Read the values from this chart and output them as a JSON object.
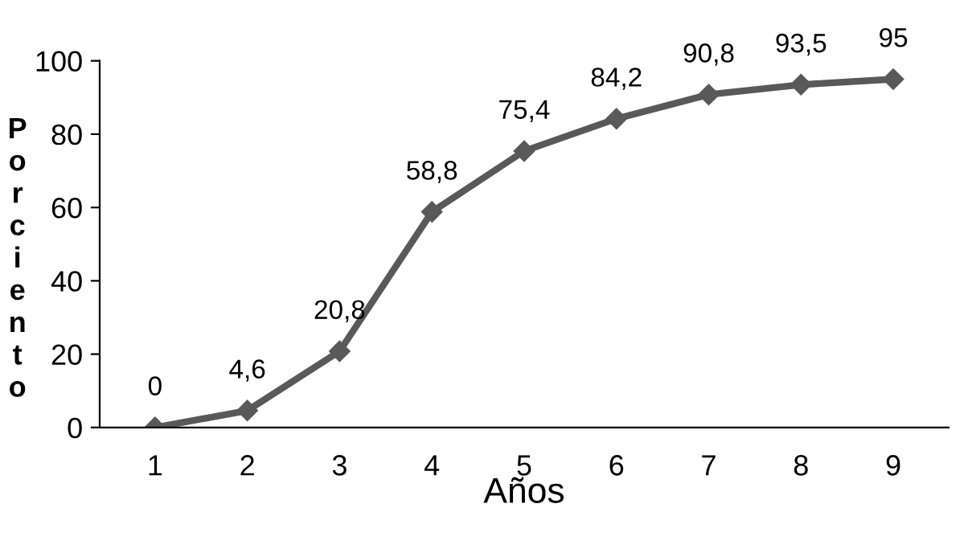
{
  "chart_data": {
    "type": "line",
    "xlabel": "Años",
    "ylabel": "Porciento",
    "categories": [
      "1",
      "2",
      "3",
      "4",
      "5",
      "6",
      "7",
      "8",
      "9"
    ],
    "series": [
      {
        "color": "#595959",
        "values": [
          0,
          4.6,
          20.8,
          58.8,
          75.4,
          84.2,
          90.8,
          93.5,
          95
        ],
        "value_labels": [
          "0",
          "4,6",
          "20,8",
          "58,8",
          "75,4",
          "84,2",
          "90,8",
          "93,5",
          "95"
        ]
      }
    ],
    "ylim": [
      0,
      100
    ],
    "yticks": [
      0,
      20,
      40,
      60,
      80,
      100
    ],
    "marker": "diamond",
    "line_style": "solid",
    "grid": false
  }
}
